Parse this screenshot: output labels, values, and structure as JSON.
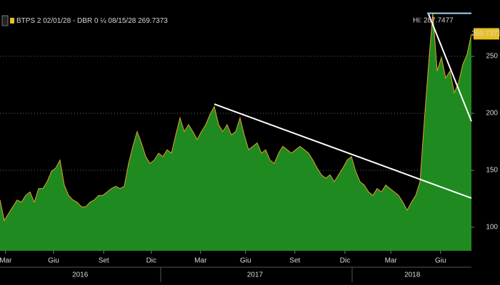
{
  "chart_data": {
    "type": "area",
    "series": [
      {
        "name": "BTPS 2 02/01/28 - DBR 0 ¼ 08/15/28",
        "color": "#1f8a1f",
        "line_color": "#e8a030",
        "values": [
          124,
          106,
          112,
          118,
          124,
          122,
          128,
          131,
          122,
          134,
          134,
          140,
          149,
          152,
          159,
          137,
          128,
          124,
          122,
          118,
          118,
          122,
          124,
          128,
          128,
          131,
          134,
          136,
          134,
          136,
          156,
          171,
          184,
          174,
          162,
          156,
          159,
          165,
          162,
          168,
          165,
          181,
          196,
          184,
          190,
          184,
          177,
          184,
          190,
          199,
          206,
          190,
          184,
          190,
          181,
          184,
          196,
          181,
          168,
          171,
          174,
          165,
          168,
          159,
          156,
          165,
          171,
          168,
          165,
          168,
          171,
          168,
          165,
          159,
          152,
          146,
          143,
          146,
          140,
          146,
          152,
          159,
          162,
          149,
          140,
          137,
          131,
          128,
          134,
          131,
          137,
          134,
          131,
          128,
          122,
          115,
          122,
          128,
          140,
          193,
          243,
          287.7477,
          237,
          249,
          231,
          237,
          218,
          227,
          243,
          252,
          269.7373
        ]
      }
    ],
    "xlim": [
      0,
      110
    ],
    "ylim": [
      79.4,
      294.4
    ],
    "xticks": [
      {
        "value": 1.3,
        "label": "Mar"
      },
      {
        "value": 12.5,
        "label": "Giu"
      },
      {
        "value": 24.2,
        "label": "Set"
      },
      {
        "value": 35.3,
        "label": "Dic"
      },
      {
        "value": 46.8,
        "label": "Mar"
      },
      {
        "value": 57.3,
        "label": "Giu"
      },
      {
        "value": 68.8,
        "label": "Set"
      },
      {
        "value": 80.5,
        "label": "Dic"
      },
      {
        "value": 91.2,
        "label": "Mar"
      },
      {
        "value": 102.8,
        "label": "Giu"
      }
    ],
    "year_ticks": [
      {
        "value": 18.7,
        "label": "2016"
      },
      {
        "value": 59.5,
        "label": "2017"
      },
      {
        "value": 96.2,
        "label": "2018"
      }
    ],
    "yticks": [
      100,
      150,
      200,
      250
    ],
    "grid": true,
    "hi": {
      "value": 287.7477,
      "label": "Hi: 287.7477"
    },
    "last": {
      "value": 269.7373,
      "label": "269.7373"
    },
    "trendlines": [
      {
        "x": [
          50,
          110
        ],
        "y": [
          208.1,
          125.6
        ]
      },
      {
        "x": [
          100,
          110
        ],
        "y": [
          287,
          193
        ]
      }
    ]
  }
}
